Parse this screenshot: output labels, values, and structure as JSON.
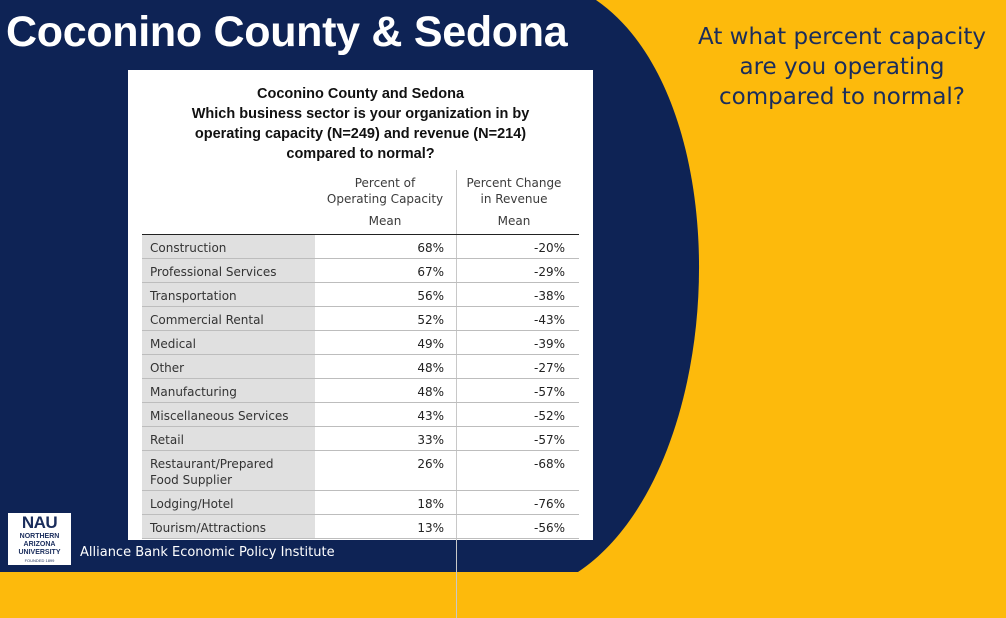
{
  "slide": {
    "title": "Coconino County & Sedona",
    "question": [
      "At what percent capacity",
      "are you operating",
      "compared to normal?"
    ],
    "footer": "Alliance Bank Economic Policy Institute",
    "colors": {
      "navy": "#0E2355",
      "gold": "#FDBA0C",
      "text_navy": "#1a2d5c"
    }
  },
  "logo": {
    "name": "NAU",
    "lines": [
      "NORTHERN",
      "ARIZONA",
      "UNIVERSITY"
    ],
    "founded": "FOUNDED 1899"
  },
  "table": {
    "title_lines": [
      "Coconino County and Sedona",
      "Which business sector is your organization in by",
      "operating capacity (N=249) and revenue (N=214)",
      "compared to normal?"
    ],
    "col1_header": [
      "Percent of",
      "Operating Capacity"
    ],
    "col2_header": [
      "Percent Change",
      "in Revenue"
    ],
    "stat_label": "Mean",
    "rows": [
      {
        "label": [
          "Construction"
        ],
        "capacity": "68%",
        "revenue": "-20%"
      },
      {
        "label": [
          "Professional Services"
        ],
        "capacity": "67%",
        "revenue": "-29%"
      },
      {
        "label": [
          "Transportation"
        ],
        "capacity": "56%",
        "revenue": "-38%"
      },
      {
        "label": [
          "Commercial Rental"
        ],
        "capacity": "52%",
        "revenue": "-43%"
      },
      {
        "label": [
          "Medical"
        ],
        "capacity": "49%",
        "revenue": "-39%"
      },
      {
        "label": [
          "Other"
        ],
        "capacity": "48%",
        "revenue": "-27%"
      },
      {
        "label": [
          "Manufacturing"
        ],
        "capacity": "48%",
        "revenue": "-57%"
      },
      {
        "label": [
          "Miscellaneous Services"
        ],
        "capacity": "43%",
        "revenue": "-52%"
      },
      {
        "label": [
          "Retail"
        ],
        "capacity": "33%",
        "revenue": "-57%"
      },
      {
        "label": [
          "Restaurant/Prepared",
          "Food Supplier"
        ],
        "capacity": "26%",
        "revenue": "-68%"
      },
      {
        "label": [
          "Lodging/Hotel"
        ],
        "capacity": "18%",
        "revenue": "-76%"
      },
      {
        "label": [
          "Tourism/Attractions"
        ],
        "capacity": "13%",
        "revenue": "-56%"
      }
    ]
  }
}
